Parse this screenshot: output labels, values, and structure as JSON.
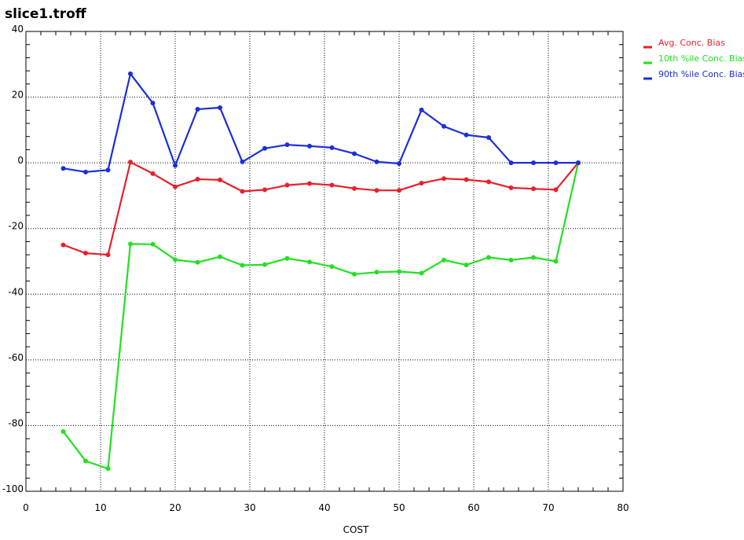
{
  "chart_data": {
    "type": "line",
    "title": "slice1.troff",
    "xlabel": "COST",
    "ylabel": "",
    "xlim": [
      0,
      80
    ],
    "ylim": [
      -100,
      40
    ],
    "x_ticks": [
      0,
      10,
      20,
      30,
      40,
      50,
      60,
      70,
      80
    ],
    "y_ticks": [
      40,
      20,
      0,
      -20,
      -40,
      -60,
      -80,
      -100
    ],
    "grid": true,
    "legend_position": "top-right",
    "x": [
      5,
      8,
      11,
      14,
      17,
      20,
      23,
      26,
      29,
      32,
      35,
      38,
      41,
      44,
      47,
      50,
      53,
      56,
      59,
      62,
      65,
      68,
      71,
      74
    ],
    "series": [
      {
        "name": "Avg. Conc. Bias",
        "color": "#e8202a",
        "values": [
          -25,
          -27.5,
          -28,
          0.2,
          -3.3,
          -7.3,
          -5,
          -5.2,
          -8.7,
          -8.2,
          -6.8,
          -6.3,
          -6.8,
          -7.8,
          -8.4,
          -8.4,
          -6.2,
          -4.8,
          -5.1,
          -5.8,
          -7.6,
          -7.9,
          -8.2,
          0
        ]
      },
      {
        "name": "10th %ile Conc. Bias",
        "color": "#22e022",
        "values": [
          -81.8,
          -90.8,
          -93.1,
          -24.7,
          -24.8,
          -29.5,
          -30.3,
          -28.6,
          -31.2,
          -31,
          -29.1,
          -30.2,
          -31.6,
          -33.9,
          -33.3,
          -33.1,
          -33.6,
          -29.6,
          -31.1,
          -28.8,
          -29.6,
          -28.8,
          -30,
          0
        ]
      },
      {
        "name": "90th %ile Conc. Bias",
        "color": "#1b2fd8",
        "values": [
          -1.7,
          -2.8,
          -2.2,
          27.1,
          18.2,
          -0.8,
          16.3,
          16.8,
          0.3,
          4.4,
          5.5,
          5.1,
          4.6,
          2.8,
          0.3,
          -0.2,
          16.1,
          11.1,
          8.5,
          7.7,
          0,
          0,
          0,
          0
        ]
      }
    ]
  }
}
